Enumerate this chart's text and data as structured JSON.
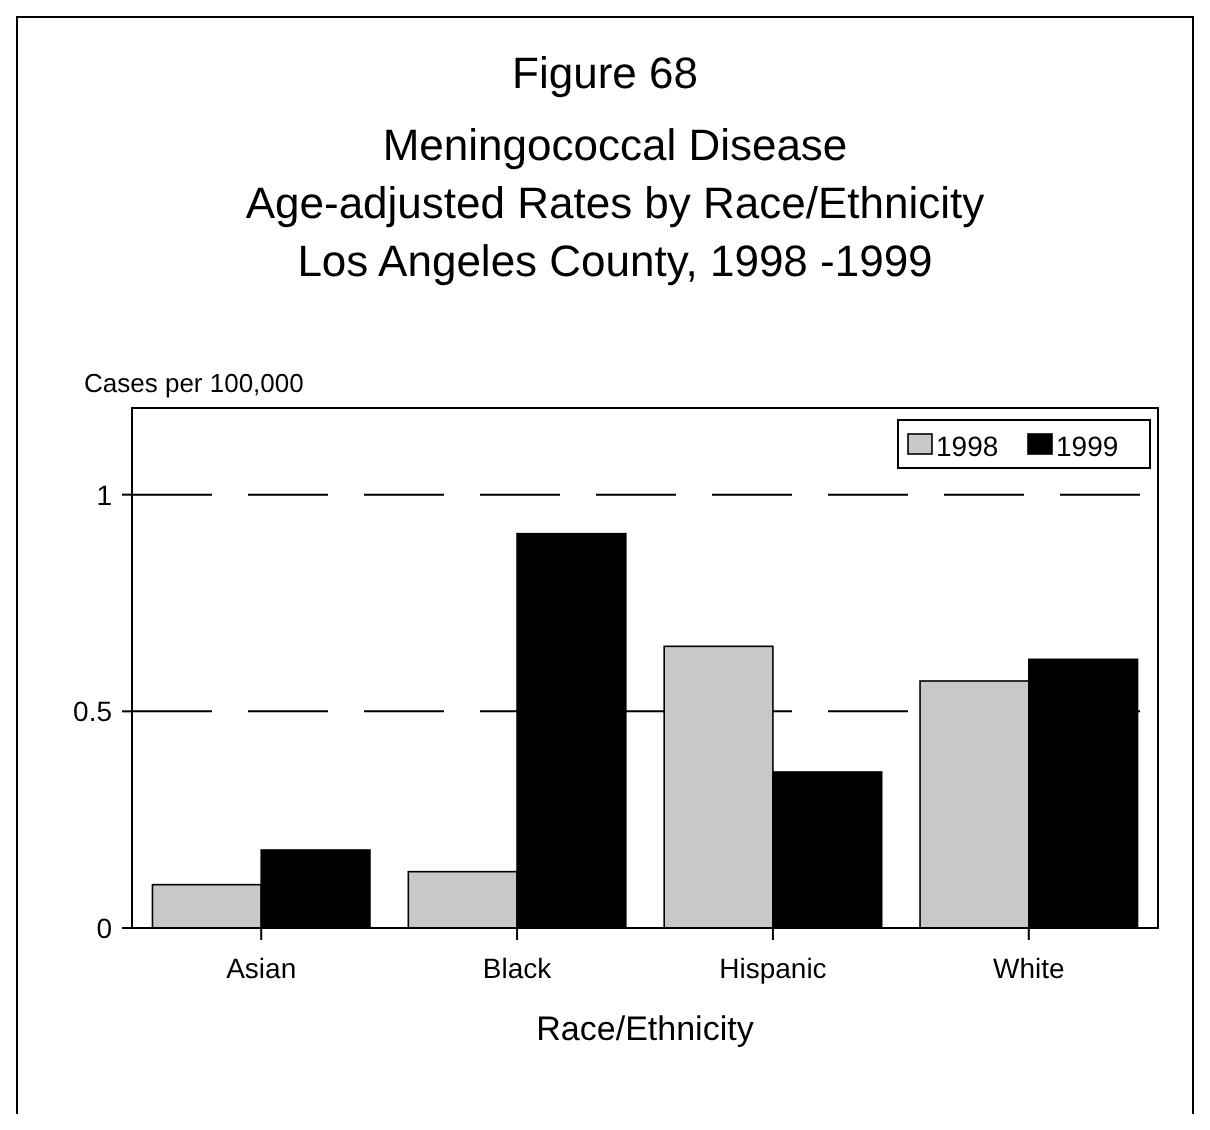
{
  "chart_data": {
    "type": "bar",
    "title": "Figure 68",
    "subtitle": "Meningococcal Disease\nAge-adjusted Rates by Race/Ethnicity\nLos Angeles County, 1998 -1999",
    "ylabel": "Cases per 100,000",
    "xlabel": "Race/Ethnicity",
    "categories": [
      "Asian",
      "Black",
      "Hispanic",
      "White"
    ],
    "series": [
      {
        "name": "1998",
        "color": "#c8c8c8",
        "values": [
          0.1,
          0.13,
          0.65,
          0.57
        ]
      },
      {
        "name": "1999",
        "color": "#000000",
        "values": [
          0.18,
          0.91,
          0.36,
          0.62
        ]
      }
    ],
    "ylim": [
      0,
      1.2
    ],
    "yticks": [
      0,
      0.5,
      1
    ],
    "grid": "y",
    "line_style": "dashed",
    "legend": "top right"
  }
}
